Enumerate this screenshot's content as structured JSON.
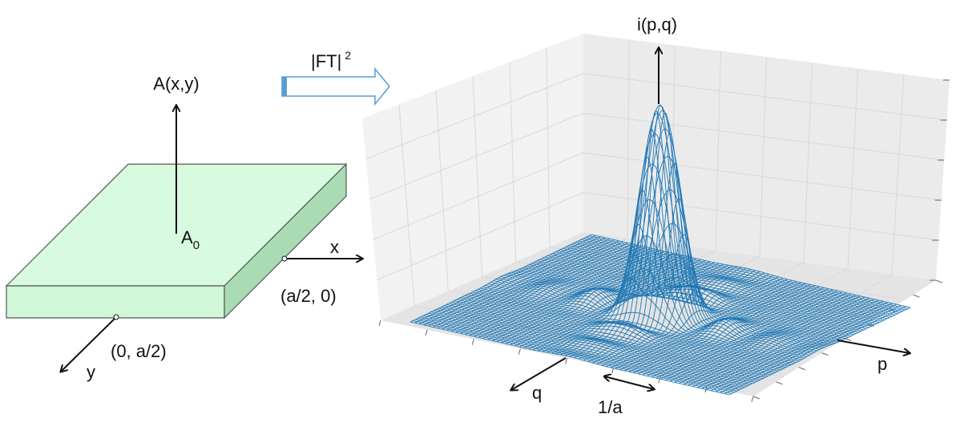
{
  "left": {
    "vertical_axis": "A(x,y)",
    "origin": {
      "text": "A",
      "subscript": "0"
    },
    "x_axis": "x",
    "x_point": "(a/2, 0)",
    "y_axis": "y",
    "y_point": "(0, a/2)"
  },
  "transform": {
    "text": "|FT|",
    "superscript": "2"
  },
  "right": {
    "vertical_axis": "i(p,q)",
    "p_axis": "p",
    "q_axis": "q",
    "width": "1/a"
  }
}
